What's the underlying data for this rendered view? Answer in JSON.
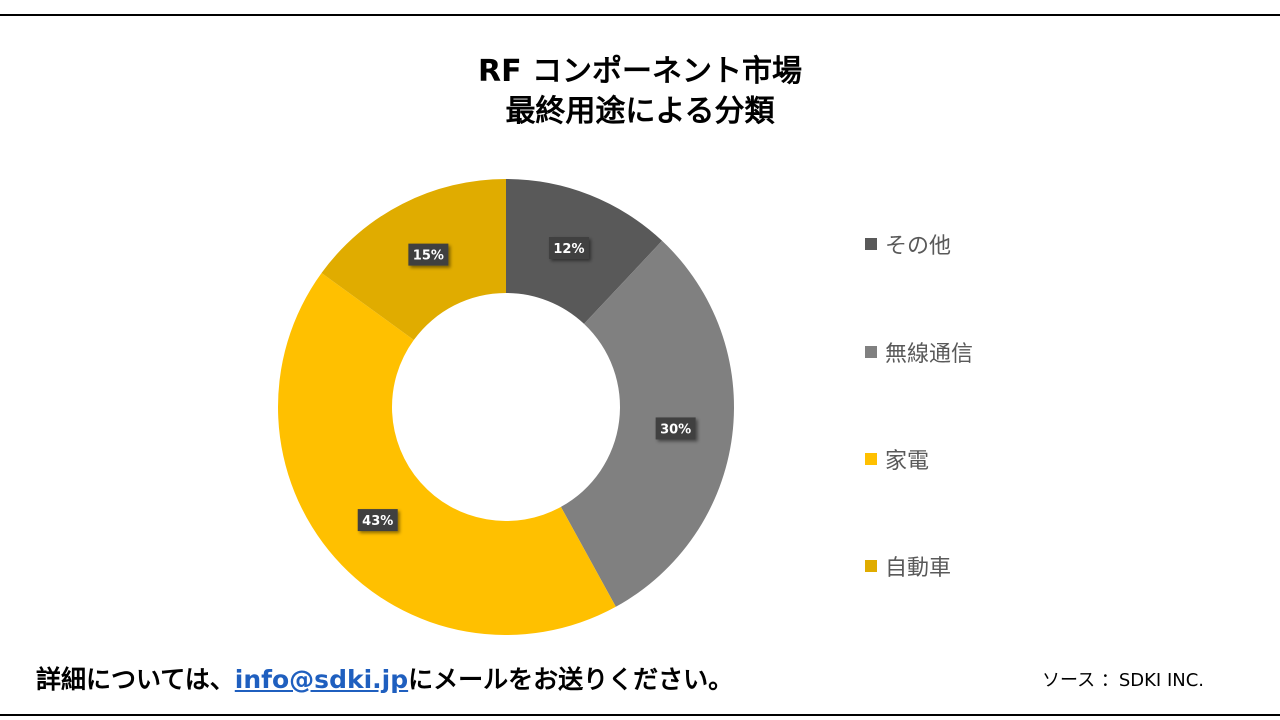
{
  "chart_data": {
    "type": "pie",
    "title_line1": "RF コンポーネント市場",
    "title_line2": "最終用途による分類",
    "categories": [
      "その他",
      "無線通信",
      "家電",
      "自動車"
    ],
    "values": [
      12,
      30,
      43,
      15
    ],
    "data_labels": [
      "12%",
      "30%",
      "43%",
      "15%"
    ],
    "colors": [
      "#595959",
      "#808080",
      "#ffc000",
      "#e0ac00"
    ],
    "legend_position": "right"
  },
  "footer": {
    "contact_prefix": "詳細については、",
    "email": "info@sdki.jp",
    "contact_suffix": "にメールをお送りください。",
    "source": "ソース ：SDKI INC."
  }
}
